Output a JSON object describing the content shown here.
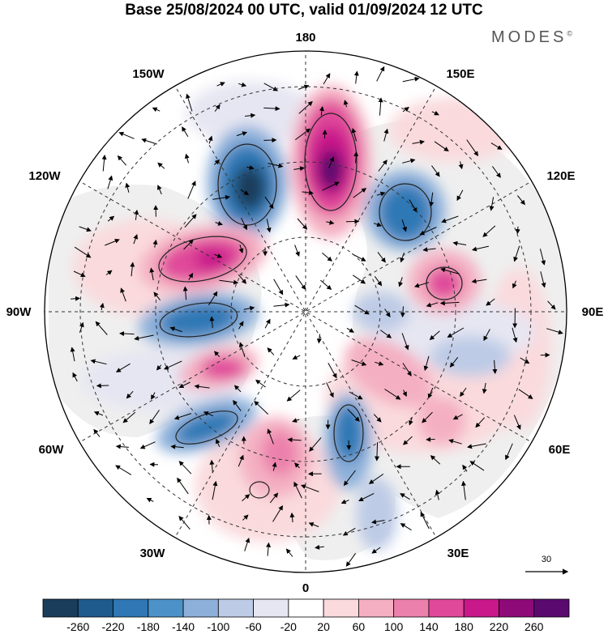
{
  "title": "Base 25/08/2024 00 UTC, valid 01/09/2024 12 UTC",
  "brand": "MODES",
  "brand_mark": "©",
  "longitude_labels": {
    "top": "180",
    "top_left": "150W",
    "top_right": "150E",
    "upper_left": "120W",
    "upper_right": "120E",
    "left": "90W",
    "right": "90E",
    "lower_left": "60W",
    "lower_right": "60E",
    "bottom_left": "30W",
    "bottom_right": "30E",
    "bottom": "0"
  },
  "reference_vector_label": "30",
  "colorbar": {
    "ticks": [
      "-260",
      "-220",
      "-180",
      "-140",
      "-100",
      "-60",
      "-20",
      "20",
      "60",
      "100",
      "140",
      "180",
      "220",
      "260"
    ],
    "colors": [
      "#1a3d5c",
      "#1f5b8c",
      "#2f78b5",
      "#4c92c9",
      "#8db0da",
      "#bdcbe6",
      "#e6e6f2",
      "#ffffff",
      "#fadadd",
      "#f4b0c2",
      "#ec80ac",
      "#e0489a",
      "#c8188a",
      "#8e0a78",
      "#5a0a6e"
    ]
  },
  "map_colors": {
    "land": "#efefef",
    "ocean": "#ffffff"
  }
}
